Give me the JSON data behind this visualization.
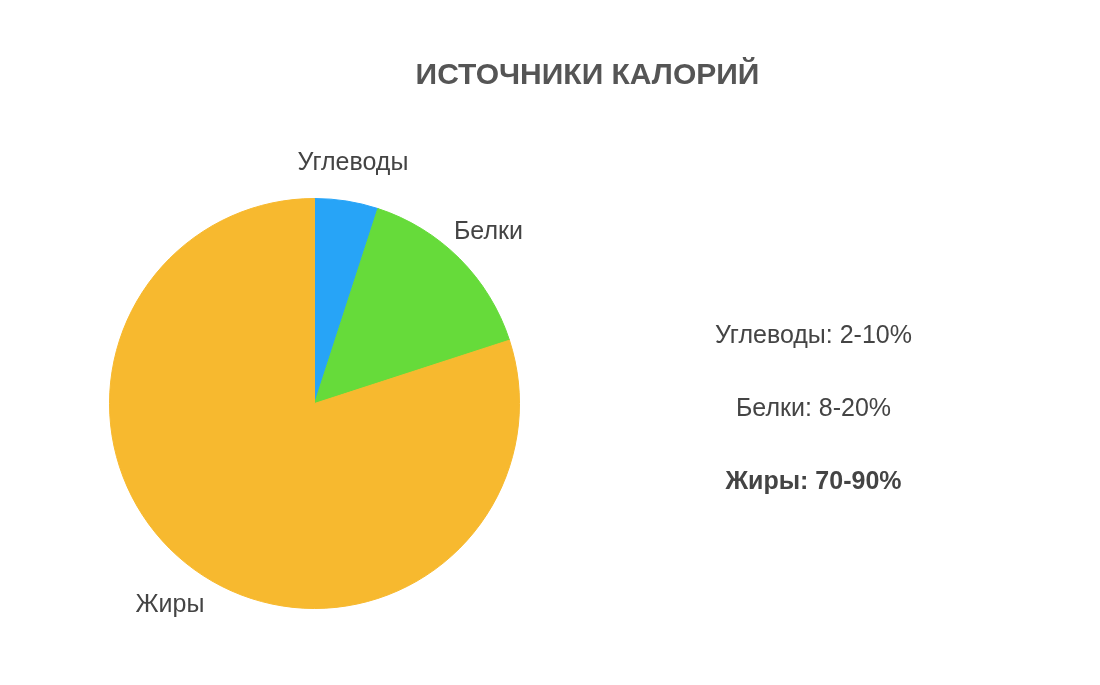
{
  "chart_data": {
    "type": "pie",
    "title": "ИСТОЧНИКИ КАЛОРИЙ",
    "categories": [
      "Углеводы",
      "Белки",
      "Жиры"
    ],
    "values": [
      5,
      15,
      80
    ],
    "colors": [
      "#27a4f7",
      "#66db3a",
      "#f7b92f"
    ],
    "annotations": [
      "Углеводы: 2-10%",
      "Белки: 8-20%",
      "Жиры: 70-90%"
    ]
  }
}
